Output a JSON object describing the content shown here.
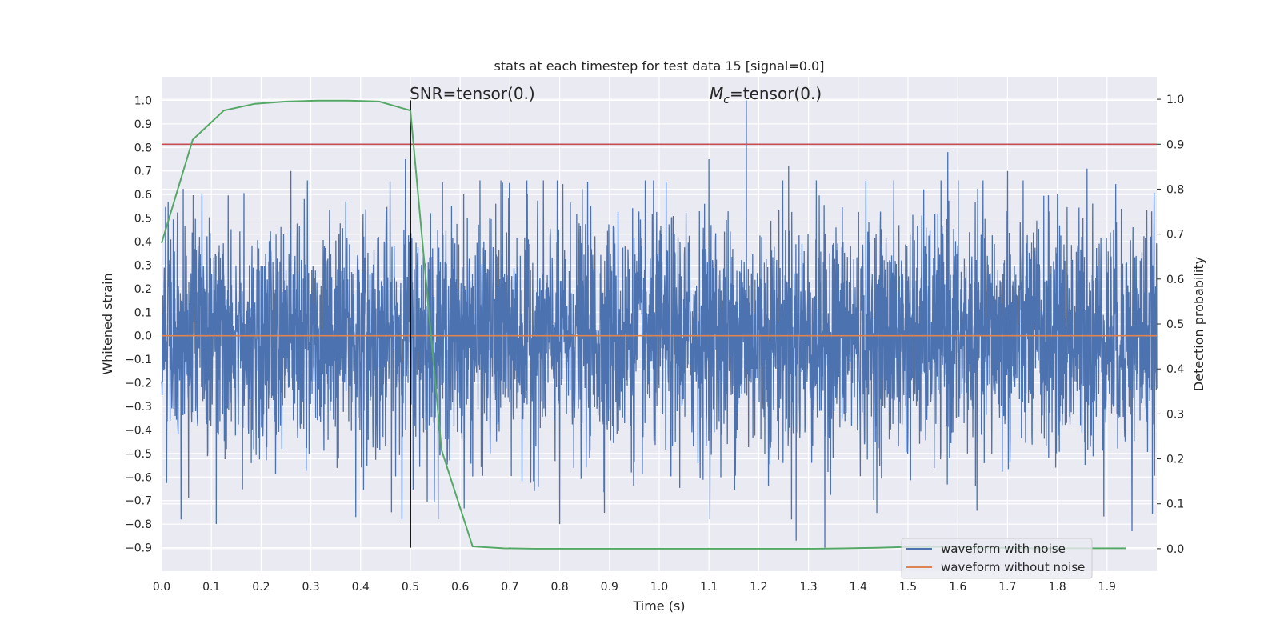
{
  "chart_data": {
    "type": "line",
    "title": "stats at each timestep for test data 15 [signal=0.0]",
    "xlabel": "Time (s)",
    "ylabel_left": "Whitened strain",
    "ylabel_right": "Detection probability",
    "xlim": [
      0.0,
      2.0
    ],
    "ylim_left": [
      -1.0,
      1.1
    ],
    "ylim_right": [
      -0.05,
      1.05
    ],
    "x_ticks": [
      "0.0",
      "0.1",
      "0.2",
      "0.3",
      "0.4",
      "0.5",
      "0.6",
      "0.7",
      "0.8",
      "0.9",
      "1.0",
      "1.1",
      "1.2",
      "1.3",
      "1.4",
      "1.5",
      "1.6",
      "1.7",
      "1.8",
      "1.9"
    ],
    "y_ticks_left": [
      "−0.9",
      "−0.8",
      "−0.7",
      "−0.6",
      "−0.5",
      "−0.4",
      "−0.3",
      "−0.2",
      "−0.1",
      "0.0",
      "0.1",
      "0.2",
      "0.3",
      "0.4",
      "0.5",
      "0.6",
      "0.7",
      "0.8",
      "0.9",
      "1.0"
    ],
    "y_ticks_right": [
      "0.0",
      "0.1",
      "0.2",
      "0.3",
      "0.4",
      "0.5",
      "0.6",
      "0.7",
      "0.8",
      "0.9",
      "1.0"
    ],
    "grid": true,
    "legend_position": "lower-right",
    "series": [
      {
        "name": "waveform with noise",
        "axis": "left",
        "color": "#4c72b0",
        "kind": "noise",
        "amplitude_std": 0.25,
        "samples": 4096,
        "peaks": [
          {
            "x": 1.175,
            "y": 1.0
          },
          {
            "x": 1.333,
            "y": -0.9
          },
          {
            "x": 1.275,
            "y": -0.87
          },
          {
            "x": 0.11,
            "y": -0.8
          },
          {
            "x": 0.8,
            "y": -0.8
          },
          {
            "x": 1.95,
            "y": -0.83
          },
          {
            "x": 0.39,
            "y": -0.77
          },
          {
            "x": 1.58,
            "y": 0.78
          },
          {
            "x": 0.49,
            "y": 0.75
          },
          {
            "x": 1.1,
            "y": 0.75
          },
          {
            "x": 0.26,
            "y": 0.7
          },
          {
            "x": 1.86,
            "y": 0.71
          },
          {
            "x": 1.7,
            "y": 0.7
          },
          {
            "x": 1.26,
            "y": 0.72
          },
          {
            "x": 0.685,
            "y": 0.65
          }
        ]
      },
      {
        "name": "waveform without noise",
        "axis": "left",
        "color": "#dd8452",
        "x": [
          0.0,
          2.0
        ],
        "y": [
          0.0,
          0.0
        ]
      },
      {
        "name": "detection probability",
        "axis": "right",
        "color": "#55a868",
        "x": [
          0.0,
          0.0625,
          0.125,
          0.1875,
          0.25,
          0.3125,
          0.375,
          0.4375,
          0.5,
          0.5625,
          0.625,
          0.6875,
          0.75,
          0.8125,
          0.875,
          0.9375,
          1.0,
          1.0625,
          1.125,
          1.1875,
          1.25,
          1.3125,
          1.375,
          1.4375,
          1.5,
          1.5625,
          1.625,
          1.6875,
          1.75,
          1.8125,
          1.875,
          1.9375
        ],
        "y": [
          0.68,
          0.91,
          0.975,
          0.99,
          0.995,
          0.997,
          0.997,
          0.995,
          0.975,
          0.22,
          0.005,
          0.001,
          0.0,
          0.0,
          0.0,
          0.0,
          0.0,
          0.0,
          0.0,
          0.0,
          0.0,
          0.0,
          0.001,
          0.002,
          0.004,
          0.004,
          0.003,
          0.002,
          0.001,
          0.001,
          0.001,
          0.001
        ]
      }
    ],
    "threshold_line": {
      "axis": "right",
      "y": 0.9,
      "color": "#c44e52"
    },
    "vertical_line": {
      "x": 0.5,
      "y_from": -0.9,
      "y_to": 1.0,
      "color": "#000000"
    },
    "annotations": [
      {
        "id": "snr",
        "text": "SNR=tensor(0.)",
        "x": 0.5,
        "y": 1.0
      },
      {
        "id": "mc",
        "text_prefix": "M",
        "text_sub": "c",
        "text_suffix": "=tensor(0.)",
        "x": 1.1,
        "y": 1.0
      }
    ]
  }
}
